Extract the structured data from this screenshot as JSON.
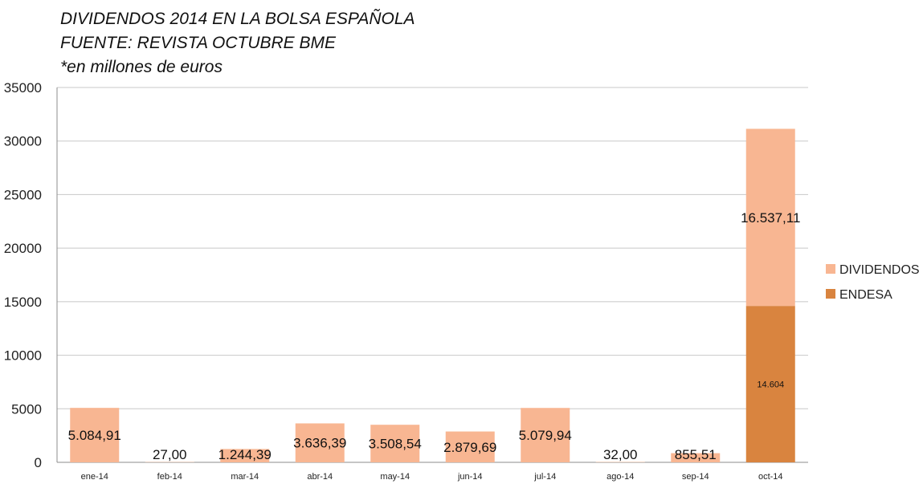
{
  "titles": [
    "DIVIDENDOS 2014 EN LA BOLSA ESPAÑOLA",
    "FUENTE: REVISTA OCTUBRE BME",
    "*en millones de euros"
  ],
  "colors": {
    "dividendos": "#F8B692",
    "endesa": "#D9843F",
    "grid": "#C8C8C8",
    "axis": "#8E8E8E"
  },
  "chart_data": {
    "type": "bar",
    "stacked": true,
    "categories": [
      "ene-14",
      "feb-14",
      "mar-14",
      "abr-14",
      "may-14",
      "jun-14",
      "jul-14",
      "ago-14",
      "sep-14",
      "oct-14"
    ],
    "series": [
      {
        "name": "ENDESA",
        "values": [
          0,
          0,
          0,
          0,
          0,
          0,
          0,
          0,
          0,
          14604
        ],
        "labels": [
          "",
          "",
          "",
          "",
          "",
          "",
          "",
          "",
          "",
          "14.604"
        ]
      },
      {
        "name": "DIVIDENDOS",
        "values": [
          5084.91,
          27.0,
          1244.39,
          3636.39,
          3508.54,
          2879.69,
          5079.94,
          32.0,
          855.51,
          16537.11
        ],
        "labels": [
          "5.084,91",
          "27,00",
          "1.244,39",
          "3.636,39",
          "3.508,54",
          "2.879,69",
          "5.079,94",
          "32,00",
          "855,51",
          "16.537,11"
        ]
      }
    ],
    "ylim": [
      0,
      35000
    ],
    "yticks": [
      "0",
      "5000",
      "10000",
      "15000",
      "20000",
      "25000",
      "30000",
      "35000"
    ],
    "ytick_values": [
      0,
      5000,
      10000,
      15000,
      20000,
      25000,
      30000,
      35000
    ],
    "grid": true,
    "legend": {
      "position": "right",
      "entries": [
        "DIVIDENDOS",
        "ENDESA"
      ]
    }
  }
}
